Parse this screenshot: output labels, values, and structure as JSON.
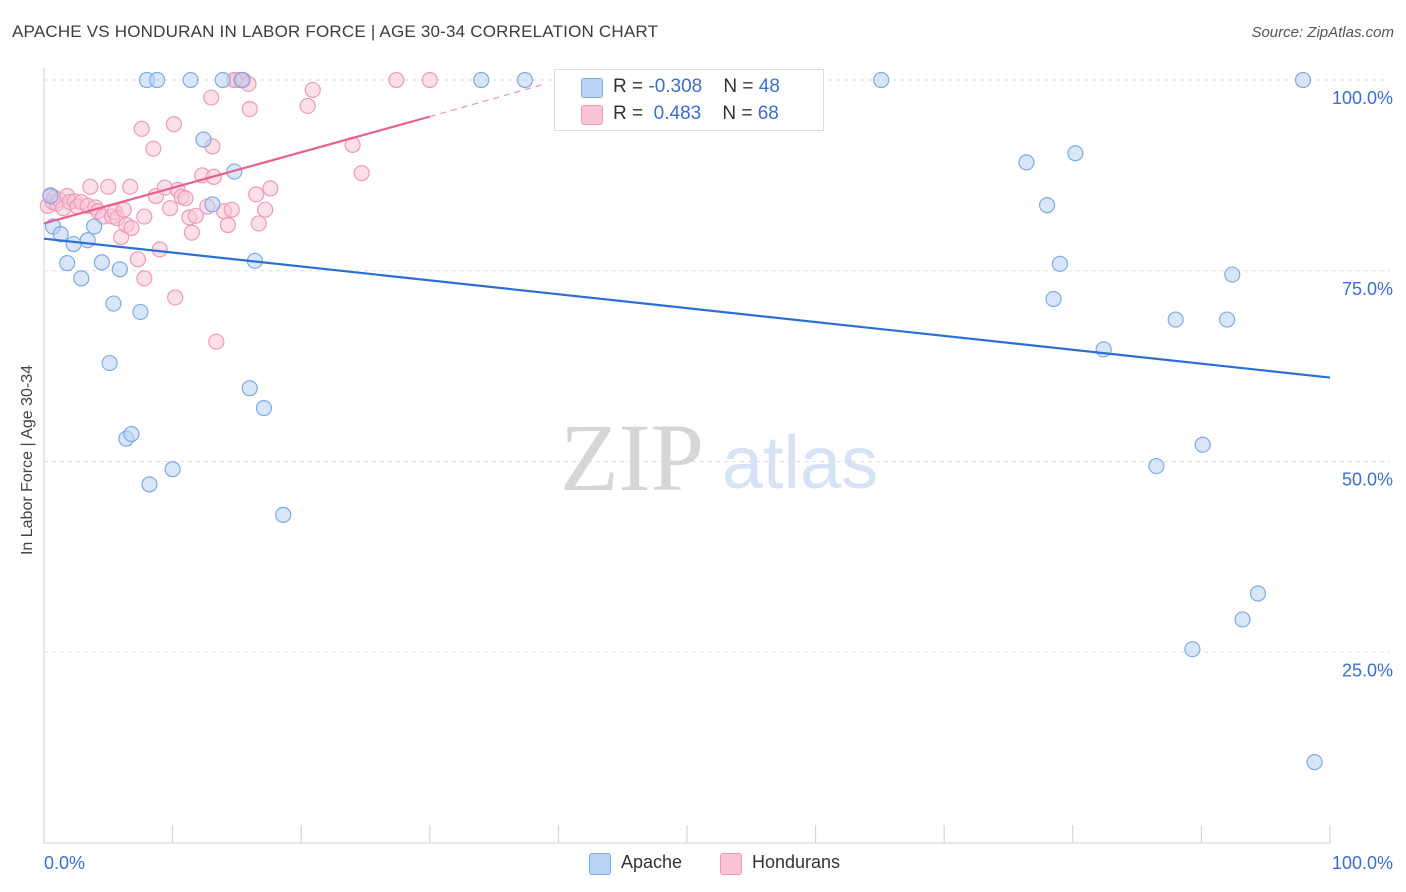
{
  "header": {
    "title": "APACHE VS HONDURAN IN LABOR FORCE | AGE 30-34 CORRELATION CHART",
    "source": "Source: ZipAtlas.com"
  },
  "watermark": {
    "zip": "ZIP",
    "atlas": "atlas"
  },
  "legend_top": {
    "rows": [
      {
        "r_label": "R = ",
        "r_value": "-0.308",
        "n_label": "N = ",
        "n_value": "48"
      },
      {
        "r_label": "R = ",
        "r_value": " 0.483",
        "n_label": "N = ",
        "n_value": "68"
      }
    ]
  },
  "colors": {
    "apache_fill": "#b9d2f3",
    "apache_stroke": "#7eaae8",
    "apache_line": "#2a6fd4",
    "honduran_fill": "#f9c5d6",
    "honduran_stroke": "#ee9ab6",
    "honduran_line": "#e8608e",
    "grid": "#dedede",
    "axis_text": "#3a6fd0"
  },
  "chart_data": {
    "type": "scatter",
    "title": "APACHE VS HONDURAN IN LABOR FORCE | AGE 30-34 CORRELATION CHART",
    "xlabel": "",
    "ylabel": "In Labor Force | Age 30-34",
    "xlim": [
      0,
      100
    ],
    "ylim": [
      0,
      100
    ],
    "x_tick_labels": [
      "0.0%",
      "100.0%"
    ],
    "y_tick_labels": [
      "25.0%",
      "50.0%",
      "75.0%",
      "100.0%"
    ],
    "y_ticks": [
      25,
      50,
      75,
      100
    ],
    "grid": true,
    "legend_position": "bottom",
    "series": [
      {
        "name": "Apache",
        "R": -0.308,
        "N": 48,
        "trend": {
          "x": [
            0,
            100
          ],
          "y": [
            79.2,
            61.0
          ]
        },
        "points": [
          [
            0.5,
            84.8
          ],
          [
            0.7,
            80.8
          ],
          [
            1.3,
            79.8
          ],
          [
            1.8,
            76.0
          ],
          [
            2.3,
            78.5
          ],
          [
            2.9,
            74.0
          ],
          [
            3.4,
            79.0
          ],
          [
            3.9,
            80.8
          ],
          [
            4.5,
            76.1
          ],
          [
            5.4,
            70.7
          ],
          [
            5.9,
            75.2
          ],
          [
            5.1,
            62.9
          ],
          [
            6.4,
            53.0
          ],
          [
            6.8,
            53.6
          ],
          [
            7.5,
            69.6
          ],
          [
            8.0,
            100
          ],
          [
            8.8,
            100
          ],
          [
            8.2,
            47.0
          ],
          [
            10.0,
            49.0
          ],
          [
            11.4,
            100
          ],
          [
            12.4,
            92.2
          ],
          [
            13.1,
            83.7
          ],
          [
            13.9,
            100
          ],
          [
            14.8,
            88.0
          ],
          [
            15.4,
            100
          ],
          [
            16.0,
            59.6
          ],
          [
            16.4,
            76.3
          ],
          [
            17.1,
            57.0
          ],
          [
            18.6,
            43.0
          ],
          [
            34.0,
            100
          ],
          [
            37.4,
            100
          ],
          [
            65.1,
            100
          ],
          [
            76.4,
            89.2
          ],
          [
            78.0,
            83.6
          ],
          [
            80.2,
            90.4
          ],
          [
            79.0,
            75.9
          ],
          [
            78.5,
            71.3
          ],
          [
            82.4,
            64.7
          ],
          [
            86.5,
            49.4
          ],
          [
            88.0,
            68.6
          ],
          [
            89.3,
            25.4
          ],
          [
            90.1,
            52.2
          ],
          [
            92.0,
            68.6
          ],
          [
            92.4,
            74.5
          ],
          [
            93.2,
            29.3
          ],
          [
            94.4,
            32.7
          ],
          [
            97.9,
            100
          ],
          [
            98.8,
            10.6
          ]
        ]
      },
      {
        "name": "Hondurans",
        "R": 0.483,
        "N": 68,
        "trend": {
          "x": [
            0,
            30
          ],
          "y": [
            81.2,
            95.2
          ]
        },
        "trend_dashed": {
          "x": [
            30,
            39
          ],
          "y": [
            95.2,
            99.5
          ]
        },
        "points": [
          [
            0.3,
            83.5
          ],
          [
            0.5,
            84.9
          ],
          [
            0.7,
            84.0
          ],
          [
            0.8,
            84.6
          ],
          [
            1.0,
            83.8
          ],
          [
            1.2,
            84.3
          ],
          [
            1.5,
            83.2
          ],
          [
            1.8,
            84.8
          ],
          [
            2.0,
            84.0
          ],
          [
            2.4,
            84.1
          ],
          [
            2.6,
            83.4
          ],
          [
            2.9,
            84.0
          ],
          [
            3.4,
            83.5
          ],
          [
            3.6,
            86.0
          ],
          [
            4.0,
            83.3
          ],
          [
            4.2,
            82.8
          ],
          [
            4.6,
            82.1
          ],
          [
            5.0,
            86.0
          ],
          [
            5.3,
            82.1
          ],
          [
            5.5,
            82.7
          ],
          [
            5.7,
            81.9
          ],
          [
            6.0,
            79.4
          ],
          [
            6.2,
            83.0
          ],
          [
            6.4,
            81.0
          ],
          [
            6.8,
            80.6
          ],
          [
            6.7,
            86.0
          ],
          [
            7.3,
            76.5
          ],
          [
            7.6,
            93.6
          ],
          [
            7.8,
            82.1
          ],
          [
            7.8,
            74.0
          ],
          [
            8.5,
            91.0
          ],
          [
            8.7,
            84.8
          ],
          [
            9.0,
            77.8
          ],
          [
            9.4,
            85.9
          ],
          [
            9.8,
            83.2
          ],
          [
            10.1,
            94.2
          ],
          [
            10.2,
            71.5
          ],
          [
            10.4,
            85.6
          ],
          [
            10.7,
            84.7
          ],
          [
            11.0,
            84.5
          ],
          [
            11.3,
            82.0
          ],
          [
            11.5,
            80.0
          ],
          [
            11.8,
            82.2
          ],
          [
            12.3,
            87.5
          ],
          [
            12.7,
            83.4
          ],
          [
            13.0,
            97.7
          ],
          [
            13.1,
            91.3
          ],
          [
            13.2,
            87.3
          ],
          [
            13.4,
            65.7
          ],
          [
            14.0,
            82.8
          ],
          [
            14.3,
            81.0
          ],
          [
            14.6,
            83.0
          ],
          [
            15.0,
            100
          ],
          [
            15.3,
            100
          ],
          [
            15.5,
            100
          ],
          [
            15.9,
            99.5
          ],
          [
            16.0,
            96.2
          ],
          [
            16.5,
            85.0
          ],
          [
            16.7,
            81.2
          ],
          [
            17.2,
            83.0
          ],
          [
            17.6,
            85.8
          ],
          [
            20.5,
            96.6
          ],
          [
            20.9,
            98.7
          ],
          [
            24.0,
            91.5
          ],
          [
            24.7,
            87.8
          ],
          [
            27.4,
            100
          ],
          [
            30.0,
            100
          ],
          [
            14.8,
            100
          ]
        ]
      }
    ]
  },
  "bottom_legend": {
    "items": [
      {
        "label": "Apache"
      },
      {
        "label": "Hondurans"
      }
    ]
  }
}
